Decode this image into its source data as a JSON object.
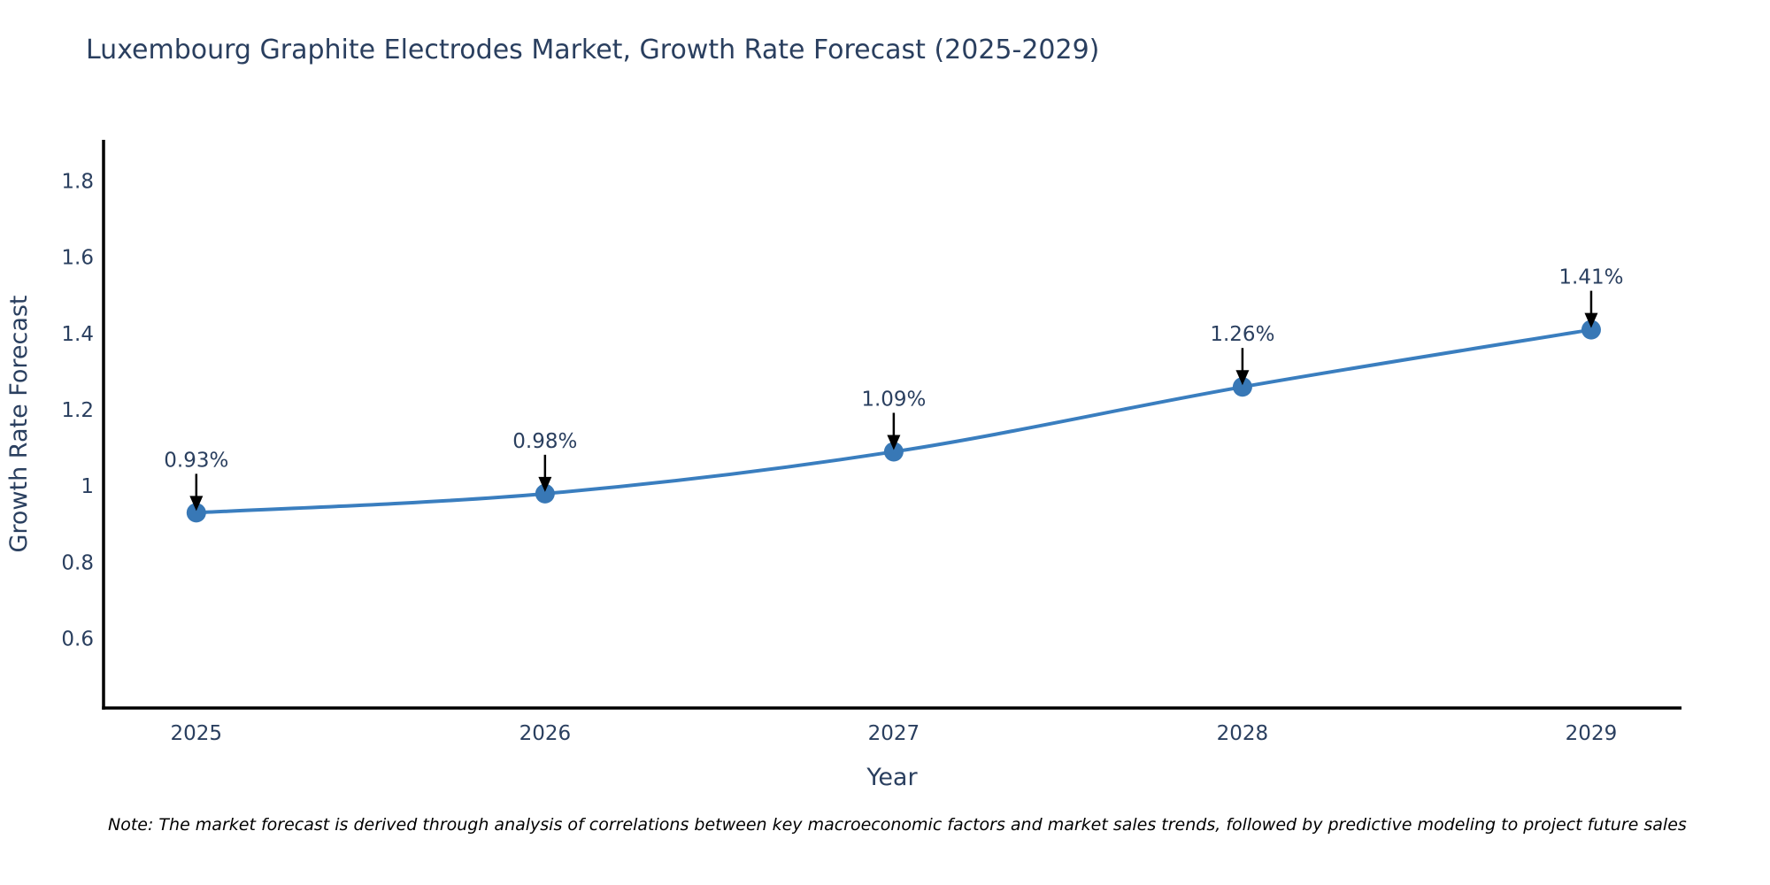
{
  "note": "Note: The market forecast is derived through analysis of correlations between key macroeconomic factors and market sales trends, followed by predictive modeling to project future sales",
  "chart_data": {
    "type": "line",
    "title": "Luxembourg Graphite Electrodes Market, Growth Rate Forecast (2025-2029)",
    "xlabel": "Year",
    "ylabel": "Growth Rate Forecast",
    "x": [
      2025,
      2026,
      2027,
      2028,
      2029
    ],
    "values": [
      0.93,
      0.98,
      1.09,
      1.26,
      1.41
    ],
    "point_labels": [
      "0.93%",
      "0.98%",
      "1.09%",
      "1.26%",
      "1.41%"
    ],
    "yticks": [
      0.6,
      0.8,
      1,
      1.2,
      1.4,
      1.6,
      1.8
    ],
    "ytick_labels": [
      "0.6",
      "0.8",
      "1",
      "1.2",
      "1.4",
      "1.6",
      "1.8"
    ],
    "xtick_labels": [
      "2025",
      "2026",
      "2027",
      "2028",
      "2029"
    ],
    "ylim": [
      0.418,
      1.908
    ],
    "xlim": [
      2024.734,
      2029.259
    ],
    "grid": false,
    "legend": "none",
    "line_shape": "spline",
    "annotation_style": "text-with-down-arrow",
    "colors": {
      "line": "#3a7ebf",
      "marker": "#3878b6",
      "annotation_arrow": "#000000",
      "text": "#2a3f5f",
      "axis_line": "#000000",
      "background": "#ffffff"
    }
  }
}
